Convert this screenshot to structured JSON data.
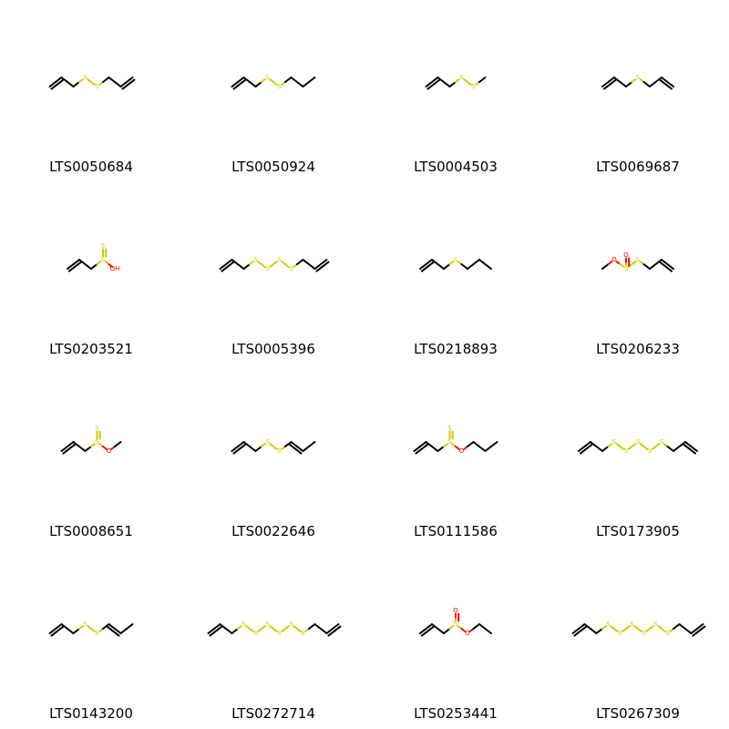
{
  "colors": {
    "carbon": "#000000",
    "sulfur": "#CCCC00",
    "oxygen": "#FF0000",
    "label": "#000000"
  },
  "molecules": [
    {
      "id": "LTS0050684",
      "chain": [
        "C",
        "=C",
        "C",
        "S",
        "S",
        "C",
        "C",
        "=C"
      ]
    },
    {
      "id": "LTS0050924",
      "chain": [
        "C",
        "=C",
        "C",
        "S",
        "S",
        "C",
        "C",
        "C"
      ]
    },
    {
      "id": "LTS0004503",
      "chain": [
        "C",
        "=C",
        "C",
        "S",
        "S",
        "C"
      ]
    },
    {
      "id": "LTS0069687",
      "chain": [
        "C",
        "=C",
        "C",
        "S",
        "C",
        "C",
        "=C"
      ]
    },
    {
      "id": "LTS0203521",
      "chain": [
        "C",
        "=C",
        "C",
        "S",
        "OH"
      ],
      "branch": {
        "at": 3,
        "atom": "S",
        "double": true
      }
    },
    {
      "id": "LTS0005396",
      "chain": [
        "C",
        "=C",
        "C",
        "S",
        "S",
        "S",
        "S",
        "C",
        "C",
        "=C"
      ]
    },
    {
      "id": "LTS0218893",
      "chain": [
        "C",
        "=C",
        "C",
        "S",
        "C",
        "C",
        "C"
      ]
    },
    {
      "id": "LTS0206233",
      "chain": [
        "C",
        "O",
        "S",
        "S",
        "C",
        "C",
        "=C"
      ],
      "branch": {
        "at": 2,
        "atom": "O",
        "double": true
      }
    },
    {
      "id": "LTS0008651",
      "chain": [
        "C",
        "=C",
        "C",
        "S",
        "O",
        "C"
      ],
      "branch": {
        "at": 3,
        "atom": "S",
        "double": true
      }
    },
    {
      "id": "LTS0022646",
      "chain": [
        "C",
        "=C",
        "C",
        "S",
        "S",
        "C",
        "=C",
        "C"
      ]
    },
    {
      "id": "LTS0111586",
      "chain": [
        "C",
        "=C",
        "C",
        "S",
        "O",
        "C",
        "C",
        "C"
      ],
      "branch": {
        "at": 3,
        "atom": "S",
        "double": true
      }
    },
    {
      "id": "LTS0173905",
      "chain": [
        "C",
        "=C",
        "C",
        "S",
        "S",
        "S",
        "S",
        "S",
        "C",
        "C",
        "=C"
      ]
    },
    {
      "id": "LTS0143200",
      "chain": [
        "C",
        "=C",
        "C",
        "S",
        "S",
        "C",
        "=C",
        "C"
      ]
    },
    {
      "id": "LTS0272714",
      "chain": [
        "C",
        "=C",
        "C",
        "S",
        "S",
        "S",
        "S",
        "S",
        "S",
        "C",
        "C",
        "=C"
      ]
    },
    {
      "id": "LTS0253441",
      "chain": [
        "C",
        "=C",
        "C",
        "S",
        "O",
        "C",
        "C"
      ],
      "branch": {
        "at": 3,
        "atom": "O",
        "double": true
      }
    },
    {
      "id": "LTS0267309",
      "chain": [
        "C",
        "=C",
        "C",
        "S",
        "S",
        "S",
        "S",
        "S",
        "S",
        "C",
        "C",
        "=C"
      ]
    }
  ]
}
